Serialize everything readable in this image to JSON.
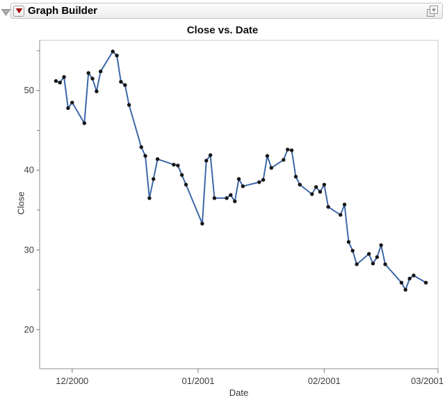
{
  "window": {
    "header": {
      "title": "Graph Builder",
      "icons": {
        "disclosure_icon": "gray-triangle-down",
        "red_triangle_menu_icon": "red-triangle-down",
        "journal_star_icon": "layered-squares-with-star"
      }
    }
  },
  "colors": {
    "line": "#3c66a8",
    "marker": "#161616",
    "red_triangle": "#c00000",
    "axis_line": "#8c8c8c",
    "frame_border": "#c9c9c9",
    "tick": "#787878",
    "tick_label": "#3c3c3c"
  },
  "chart_data": {
    "type": "line",
    "title": "Close vs. Date",
    "xlabel": "Date",
    "ylabel": "Close",
    "x_type": "date",
    "grid": false,
    "legend": "none",
    "xlim": [
      "2000-11-23",
      "2001-03-01"
    ],
    "ylim": [
      15.1,
      56.3
    ],
    "x_ticks": [
      {
        "date": "2000-12-01",
        "label": "12/2000"
      },
      {
        "date": "2001-01-01",
        "label": "01/2001"
      },
      {
        "date": "2001-02-01",
        "label": "02/2001"
      },
      {
        "date": "2001-03-01",
        "label": "03/2001"
      }
    ],
    "y_ticks": [
      {
        "value": 20,
        "label": "20"
      },
      {
        "value": 30,
        "label": "30"
      },
      {
        "value": 40,
        "label": "40"
      },
      {
        "value": 50,
        "label": "50"
      }
    ],
    "y_minor_ticks": [
      25,
      35,
      45,
      55
    ],
    "points": [
      {
        "date": "2000-11-27",
        "close": 51.2
      },
      {
        "date": "2000-11-28",
        "close": 51.0
      },
      {
        "date": "2000-11-29",
        "close": 51.7
      },
      {
        "date": "2000-11-30",
        "close": 47.8
      },
      {
        "date": "2000-12-01",
        "close": 48.5
      },
      {
        "date": "2000-12-04",
        "close": 45.9
      },
      {
        "date": "2000-12-05",
        "close": 52.2
      },
      {
        "date": "2000-12-06",
        "close": 51.5
      },
      {
        "date": "2000-12-07",
        "close": 49.9
      },
      {
        "date": "2000-12-08",
        "close": 52.4
      },
      {
        "date": "2000-12-11",
        "close": 54.9
      },
      {
        "date": "2000-12-12",
        "close": 54.4
      },
      {
        "date": "2000-12-13",
        "close": 51.1
      },
      {
        "date": "2000-12-14",
        "close": 50.7
      },
      {
        "date": "2000-12-15",
        "close": 48.2
      },
      {
        "date": "2000-12-18",
        "close": 42.9
      },
      {
        "date": "2000-12-19",
        "close": 41.8
      },
      {
        "date": "2000-12-20",
        "close": 36.5
      },
      {
        "date": "2000-12-21",
        "close": 38.9
      },
      {
        "date": "2000-12-22",
        "close": 41.4
      },
      {
        "date": "2000-12-26",
        "close": 40.7
      },
      {
        "date": "2000-12-27",
        "close": 40.6
      },
      {
        "date": "2000-12-28",
        "close": 39.4
      },
      {
        "date": "2000-12-29",
        "close": 38.2
      },
      {
        "date": "2001-01-02",
        "close": 33.3
      },
      {
        "date": "2001-01-03",
        "close": 41.2
      },
      {
        "date": "2001-01-04",
        "close": 41.9
      },
      {
        "date": "2001-01-05",
        "close": 36.5
      },
      {
        "date": "2001-01-08",
        "close": 36.5
      },
      {
        "date": "2001-01-09",
        "close": 36.9
      },
      {
        "date": "2001-01-10",
        "close": 36.1
      },
      {
        "date": "2001-01-11",
        "close": 38.9
      },
      {
        "date": "2001-01-12",
        "close": 38.0
      },
      {
        "date": "2001-01-16",
        "close": 38.5
      },
      {
        "date": "2001-01-17",
        "close": 38.8
      },
      {
        "date": "2001-01-18",
        "close": 41.8
      },
      {
        "date": "2001-01-19",
        "close": 40.3
      },
      {
        "date": "2001-01-22",
        "close": 41.3
      },
      {
        "date": "2001-01-23",
        "close": 42.6
      },
      {
        "date": "2001-01-24",
        "close": 42.5
      },
      {
        "date": "2001-01-25",
        "close": 39.2
      },
      {
        "date": "2001-01-26",
        "close": 38.2
      },
      {
        "date": "2001-01-29",
        "close": 37.0
      },
      {
        "date": "2001-01-30",
        "close": 37.9
      },
      {
        "date": "2001-01-31",
        "close": 37.3
      },
      {
        "date": "2001-02-01",
        "close": 38.2
      },
      {
        "date": "2001-02-02",
        "close": 35.4
      },
      {
        "date": "2001-02-05",
        "close": 34.4
      },
      {
        "date": "2001-02-06",
        "close": 35.7
      },
      {
        "date": "2001-02-07",
        "close": 31.0
      },
      {
        "date": "2001-02-08",
        "close": 29.9
      },
      {
        "date": "2001-02-09",
        "close": 28.2
      },
      {
        "date": "2001-02-12",
        "close": 29.5
      },
      {
        "date": "2001-02-13",
        "close": 28.3
      },
      {
        "date": "2001-02-14",
        "close": 29.1
      },
      {
        "date": "2001-02-15",
        "close": 30.6
      },
      {
        "date": "2001-02-16",
        "close": 28.2
      },
      {
        "date": "2001-02-20",
        "close": 25.9
      },
      {
        "date": "2001-02-21",
        "close": 25.0
      },
      {
        "date": "2001-02-22",
        "close": 26.4
      },
      {
        "date": "2001-02-23",
        "close": 26.8
      },
      {
        "date": "2001-02-26",
        "close": 25.9
      }
    ]
  }
}
